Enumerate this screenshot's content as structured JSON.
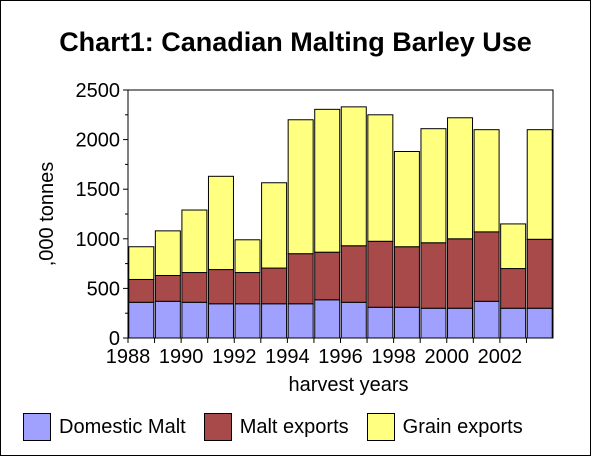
{
  "chart_data": {
    "type": "bar",
    "stacked": true,
    "title": "Chart1: Canadian Malting Barley Use",
    "xlabel": "harvest years",
    "ylabel": ",000 tonnes",
    "ylim": [
      0,
      2500
    ],
    "yticks": [
      0,
      500,
      1000,
      1500,
      2000,
      2500
    ],
    "categories": [
      "1988",
      "1989",
      "1990",
      "1991",
      "1992",
      "1993",
      "1994",
      "1995",
      "1996",
      "1997",
      "1998",
      "1999",
      "2000",
      "2001",
      "2002",
      "2003"
    ],
    "x_tick_labels": [
      "1988",
      "1990",
      "1992",
      "1994",
      "1996",
      "1998",
      "2000",
      "2002"
    ],
    "grid": false,
    "legend_position": "bottom",
    "series": [
      {
        "name": "Domestic Malt",
        "color": "#a0a0ff",
        "values": [
          360,
          370,
          360,
          345,
          345,
          345,
          345,
          385,
          360,
          310,
          310,
          300,
          300,
          370,
          300,
          300
        ]
      },
      {
        "name": "Malt exports",
        "color": "#a84a4a",
        "values": [
          230,
          260,
          300,
          345,
          315,
          360,
          505,
          480,
          570,
          665,
          610,
          660,
          700,
          700,
          400,
          695
        ]
      },
      {
        "name": "Grain exports",
        "color": "#ffff80",
        "values": [
          330,
          450,
          630,
          940,
          330,
          860,
          1350,
          1440,
          1400,
          1275,
          960,
          1150,
          1220,
          1030,
          450,
          1105
        ]
      }
    ]
  }
}
